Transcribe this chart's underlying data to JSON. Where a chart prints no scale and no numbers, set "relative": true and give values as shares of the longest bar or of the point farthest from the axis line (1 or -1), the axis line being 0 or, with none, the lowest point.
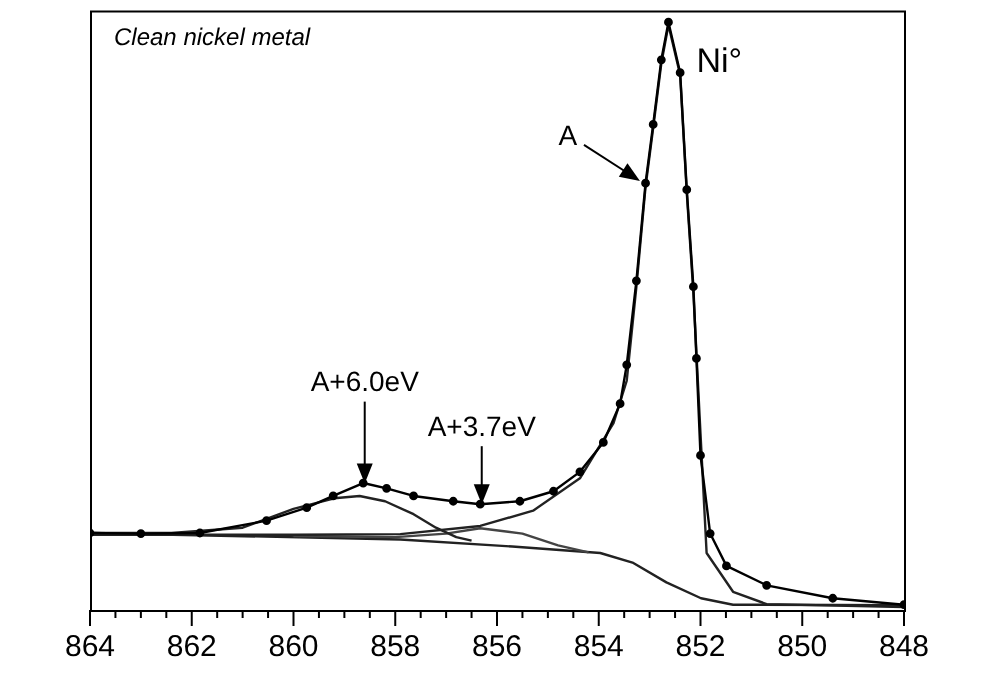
{
  "chart_data": {
    "type": "line",
    "relative": true,
    "xlim": [
      864,
      848
    ],
    "xticks": [
      864,
      {
        "value": 863.5,
        "label": null
      },
      {
        "value": 863,
        "label": null
      },
      {
        "value": 862.5,
        "label": null
      },
      862,
      {
        "value": 861.5,
        "label": null
      },
      {
        "value": 861,
        "label": null
      },
      {
        "value": 860.5,
        "label": null
      },
      860,
      {
        "value": 859.5,
        "label": null
      },
      {
        "value": 859,
        "label": null
      },
      {
        "value": 858.5,
        "label": null
      },
      858,
      {
        "value": 857.5,
        "label": null
      },
      {
        "value": 857,
        "label": null
      },
      {
        "value": 856.5,
        "label": null
      },
      856,
      {
        "value": 855.5,
        "label": null
      },
      {
        "value": 855,
        "label": null
      },
      {
        "value": 854.5,
        "label": null
      },
      854,
      {
        "value": 853.5,
        "label": null
      },
      {
        "value": 853,
        "label": null
      },
      {
        "value": 852.5,
        "label": null
      },
      852,
      {
        "value": 851.5,
        "label": null
      },
      {
        "value": 851,
        "label": null
      },
      {
        "value": 850.5,
        "label": null
      },
      850,
      {
        "value": 849.5,
        "label": null
      },
      {
        "value": 849,
        "label": null
      },
      {
        "value": 848.5,
        "label": null
      },
      848
    ],
    "series": [
      {
        "color": "#000000",
        "marker": "circle",
        "x": [
          864,
          863,
          861.84,
          860.53,
          859.74,
          859.22,
          858.63,
          858.17,
          857.64,
          856.86,
          856.33,
          855.55,
          854.89,
          854.37,
          853.91,
          853.58,
          853.45,
          853.26,
          853.08,
          852.93,
          852.77,
          852.63,
          852.4,
          852.27,
          852.14,
          852.08,
          852.0,
          851.81,
          851.49,
          850.7,
          849.4,
          848
        ],
        "values": [
          0.131,
          0.13,
          0.131,
          0.152,
          0.174,
          0.194,
          0.216,
          0.207,
          0.194,
          0.185,
          0.18,
          0.185,
          0.202,
          0.235,
          0.285,
          0.351,
          0.417,
          0.56,
          0.726,
          0.826,
          0.936,
          1.0,
          0.914,
          0.715,
          0.55,
          0.428,
          0.263,
          0.13,
          0.075,
          0.042,
          0.02,
          0.009
        ]
      },
      {
        "color": "#222222",
        "marker": "none",
        "x": [
          864,
          860,
          857.9,
          856.33,
          855.29,
          854.37,
          853.71,
          853.45,
          853.26,
          853.08,
          852.93,
          852.77,
          852.63,
          852.4,
          852.27,
          852.14,
          852.0,
          851.88,
          851.36,
          850.7,
          848
        ],
        "values": [
          0.128,
          0.128,
          0.129,
          0.143,
          0.169,
          0.224,
          0.318,
          0.39,
          0.55,
          0.72,
          0.82,
          0.93,
          0.995,
          0.91,
          0.71,
          0.54,
          0.3,
          0.097,
          0.031,
          0.01,
          0.005
        ]
      },
      {
        "color": "#222222",
        "marker": "none",
        "x": [
          864,
          862.4,
          861,
          860,
          859.2,
          858.7,
          858.2,
          857.64,
          857.2,
          856.8,
          856.5
        ],
        "values": [
          0.131,
          0.131,
          0.14,
          0.172,
          0.19,
          0.194,
          0.185,
          0.163,
          0.14,
          0.124,
          0.118
        ]
      },
      {
        "color": "#444444",
        "marker": "none",
        "x": [
          860,
          858,
          857,
          856.33,
          855.5,
          854.8,
          854.2
        ],
        "values": [
          0.126,
          0.124,
          0.13,
          0.139,
          0.13,
          0.11,
          0.098
        ]
      },
      {
        "color": "#222222",
        "marker": "none",
        "x": [
          864,
          857.9,
          855.7,
          853.97,
          853.32,
          852.67,
          851.99,
          851.36,
          848
        ],
        "values": [
          0.131,
          0.12,
          0.108,
          0.097,
          0.08,
          0.047,
          0.02,
          0.009,
          0.008
        ]
      }
    ],
    "annotations": [
      "Clean nickel metal",
      {
        "text": "Ni°",
        "x": 852.63,
        "y": 1.0
      },
      {
        "text": "A",
        "x": 853.19,
        "y": 0.73
      },
      {
        "text": "A+6.0eV",
        "x": 858.6,
        "y": 0.215
      },
      {
        "text": "A+3.7eV",
        "x": 856.3,
        "y": 0.18
      }
    ]
  }
}
